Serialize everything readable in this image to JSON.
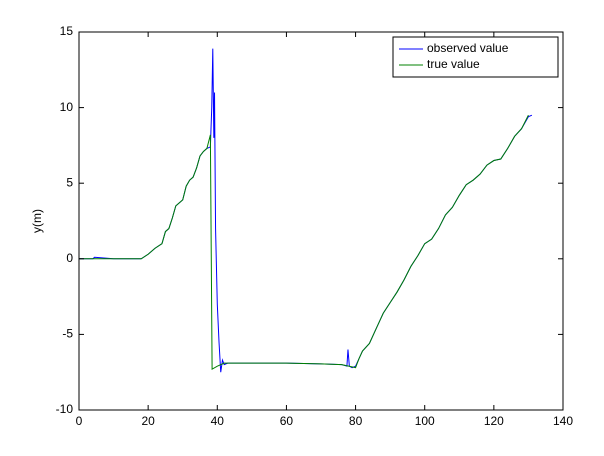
{
  "chart_data": {
    "type": "line",
    "ylabel": "y(m)",
    "xlim": [
      0,
      140
    ],
    "xticks": [
      0,
      20,
      40,
      60,
      80,
      100,
      120,
      140
    ],
    "ylim": [
      -10,
      15
    ],
    "yticks": [
      -10,
      -5,
      0,
      5,
      10,
      15
    ],
    "legend": "upper right",
    "series": [
      {
        "name": "observed value",
        "color": "#0000ff",
        "x": [
          0,
          4,
          4.5,
          10,
          18,
          20,
          22,
          24,
          25,
          26,
          27,
          28,
          29,
          30,
          31,
          32,
          33,
          34,
          35,
          36,
          37,
          38,
          38.4,
          38.7,
          39,
          39.2,
          39.5,
          40,
          40.5,
          41,
          41.5,
          42,
          43,
          50,
          60,
          70,
          76,
          77.5,
          77.8,
          78.2,
          79,
          80,
          81,
          82,
          84,
          86,
          88,
          90,
          92,
          94,
          96,
          98,
          100,
          102,
          104,
          106,
          108,
          110,
          112,
          114,
          116,
          118,
          120,
          122,
          124,
          126,
          128,
          130,
          131
        ],
        "values": [
          0,
          0,
          0.1,
          0,
          0,
          0.3,
          0.7,
          1.0,
          1.8,
          2.0,
          2.7,
          3.5,
          3.7,
          3.9,
          4.8,
          5.2,
          5.4,
          6.0,
          6.8,
          7.1,
          7.3,
          7.4,
          10,
          13.9,
          8,
          11,
          2,
          -3,
          -5.5,
          -7.5,
          -6.7,
          -7.0,
          -6.9,
          -6.9,
          -6.9,
          -6.95,
          -7.0,
          -7.1,
          -6.0,
          -7.1,
          -7.2,
          -7.1,
          -6.6,
          -6.1,
          -5.6,
          -4.6,
          -3.6,
          -2.9,
          -2.2,
          -1.4,
          -0.5,
          0.2,
          1.0,
          1.3,
          2.0,
          2.9,
          3.4,
          4.2,
          4.9,
          5.2,
          5.6,
          6.2,
          6.5,
          6.6,
          7.3,
          8.1,
          8.6,
          9.4,
          9.5
        ]
      },
      {
        "name": "true value",
        "color": "#008000",
        "x": [
          0,
          18,
          20,
          22,
          24,
          25,
          26,
          27,
          28,
          29,
          30,
          31,
          32,
          33,
          34,
          35,
          36,
          37,
          38,
          38.5,
          40,
          42,
          50,
          60,
          70,
          76,
          78,
          80,
          81,
          82,
          84,
          86,
          88,
          90,
          92,
          94,
          96,
          98,
          100,
          102,
          104,
          106,
          108,
          110,
          112,
          114,
          116,
          118,
          120,
          122,
          124,
          126,
          128,
          130
        ],
        "values": [
          0,
          0,
          0.3,
          0.7,
          1.0,
          1.8,
          2.0,
          2.7,
          3.5,
          3.7,
          3.9,
          4.8,
          5.2,
          5.4,
          6.0,
          6.8,
          7.1,
          7.3,
          8.2,
          -7.3,
          -7.1,
          -6.9,
          -6.9,
          -6.9,
          -6.95,
          -7.0,
          -7.1,
          -7.2,
          -6.6,
          -6.1,
          -5.6,
          -4.6,
          -3.6,
          -2.9,
          -2.2,
          -1.4,
          -0.5,
          0.2,
          1.0,
          1.3,
          2.0,
          2.9,
          3.4,
          4.2,
          4.9,
          5.2,
          5.6,
          6.2,
          6.5,
          6.6,
          7.3,
          8.1,
          8.6,
          9.5
        ]
      }
    ]
  }
}
